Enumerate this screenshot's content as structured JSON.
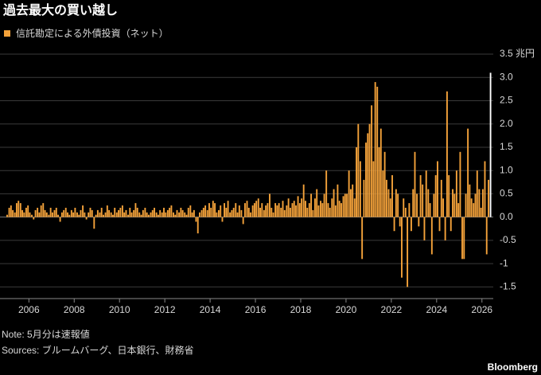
{
  "title": "過去最大の買い越し",
  "note": "Note: 5月分は速報値",
  "sources": "Sources: ブルームバーグ、日本銀行、財務省",
  "brand": "Bloomberg",
  "chart_data": {
    "type": "bar",
    "series": [
      {
        "name": "信託勘定による外債投資（ネット）",
        "color": "#f4a23a",
        "last_color": "#ffffff",
        "x": [
          2005.04,
          2005.13,
          2005.21,
          2005.29,
          2005.38,
          2005.46,
          2005.54,
          2005.63,
          2005.71,
          2005.79,
          2005.88,
          2005.96,
          2006.04,
          2006.13,
          2006.21,
          2006.29,
          2006.38,
          2006.46,
          2006.54,
          2006.63,
          2006.71,
          2006.79,
          2006.88,
          2006.96,
          2007.04,
          2007.13,
          2007.21,
          2007.29,
          2007.38,
          2007.46,
          2007.54,
          2007.63,
          2007.71,
          2007.79,
          2007.88,
          2007.96,
          2008.04,
          2008.13,
          2008.21,
          2008.29,
          2008.38,
          2008.46,
          2008.54,
          2008.63,
          2008.71,
          2008.79,
          2008.88,
          2008.96,
          2009.04,
          2009.13,
          2009.21,
          2009.29,
          2009.38,
          2009.46,
          2009.54,
          2009.63,
          2009.71,
          2009.79,
          2009.88,
          2009.96,
          2010.04,
          2010.13,
          2010.21,
          2010.29,
          2010.38,
          2010.46,
          2010.54,
          2010.63,
          2010.71,
          2010.79,
          2010.88,
          2010.96,
          2011.04,
          2011.13,
          2011.21,
          2011.29,
          2011.38,
          2011.46,
          2011.54,
          2011.63,
          2011.71,
          2011.79,
          2011.88,
          2011.96,
          2012.04,
          2012.13,
          2012.21,
          2012.29,
          2012.38,
          2012.46,
          2012.54,
          2012.63,
          2012.71,
          2012.79,
          2012.88,
          2012.96,
          2013.04,
          2013.13,
          2013.21,
          2013.29,
          2013.38,
          2013.46,
          2013.54,
          2013.63,
          2013.71,
          2013.79,
          2013.88,
          2013.96,
          2014.04,
          2014.13,
          2014.21,
          2014.29,
          2014.38,
          2014.46,
          2014.54,
          2014.63,
          2014.71,
          2014.79,
          2014.88,
          2014.96,
          2015.04,
          2015.13,
          2015.21,
          2015.29,
          2015.38,
          2015.46,
          2015.54,
          2015.63,
          2015.71,
          2015.79,
          2015.88,
          2015.96,
          2016.04,
          2016.13,
          2016.21,
          2016.29,
          2016.38,
          2016.46,
          2016.54,
          2016.63,
          2016.71,
          2016.79,
          2016.88,
          2016.96,
          2017.04,
          2017.13,
          2017.21,
          2017.29,
          2017.38,
          2017.46,
          2017.54,
          2017.63,
          2017.71,
          2017.79,
          2017.88,
          2017.96,
          2018.04,
          2018.13,
          2018.21,
          2018.29,
          2018.38,
          2018.46,
          2018.54,
          2018.63,
          2018.71,
          2018.79,
          2018.88,
          2018.96,
          2019.04,
          2019.13,
          2019.21,
          2019.29,
          2019.38,
          2019.46,
          2019.54,
          2019.63,
          2019.71,
          2019.79,
          2019.88,
          2019.96,
          2020.04,
          2020.13,
          2020.21,
          2020.29,
          2020.38,
          2020.46,
          2020.54,
          2020.63,
          2020.71,
          2020.79,
          2020.88,
          2020.96,
          2021.04,
          2021.13,
          2021.21,
          2021.29,
          2021.38,
          2021.46,
          2021.54,
          2021.63,
          2021.71,
          2021.79,
          2021.88,
          2021.96,
          2022.04,
          2022.13,
          2022.21,
          2022.29,
          2022.38,
          2022.46,
          2022.54,
          2022.63,
          2022.71,
          2022.79,
          2022.88,
          2022.96,
          2023.04,
          2023.13,
          2023.21,
          2023.29,
          2023.38,
          2023.46,
          2023.54,
          2023.63,
          2023.71,
          2023.79,
          2023.88,
          2023.96,
          2024.04,
          2024.13,
          2024.21,
          2024.29,
          2024.38,
          2024.46,
          2024.54,
          2024.63,
          2024.71,
          2024.79,
          2024.88,
          2024.96,
          2025.04,
          2025.13,
          2025.21,
          2025.29,
          2025.38,
          2025.46,
          2025.54,
          2025.63,
          2025.71,
          2025.79,
          2025.88,
          2025.96,
          2026.04,
          2026.13,
          2026.21,
          2026.29,
          2026.38
        ],
        "values": [
          0.05,
          0.2,
          0.25,
          0.15,
          0.1,
          0.3,
          0.35,
          0.3,
          0.15,
          0.1,
          0.2,
          0.25,
          0.1,
          0.05,
          -0.05,
          0.15,
          0.2,
          0.1,
          0.25,
          0.3,
          0.15,
          0.1,
          0.05,
          0.2,
          0.1,
          0.15,
          0.2,
          0.05,
          -0.1,
          0.1,
          0.15,
          0.2,
          0.1,
          0.05,
          0.15,
          0.1,
          0.2,
          0.1,
          0.05,
          0.15,
          0.25,
          0.1,
          -0.05,
          0.1,
          0.2,
          0.15,
          -0.25,
          0.05,
          0.15,
          0.1,
          0.2,
          0.05,
          0.1,
          0.25,
          0.15,
          0.1,
          0.05,
          0.2,
          0.1,
          0.15,
          0.2,
          0.25,
          0.1,
          0.15,
          0.05,
          0.2,
          0.1,
          0.15,
          0.3,
          0.2,
          0.1,
          0.05,
          0.15,
          0.2,
          0.1,
          0.05,
          0.1,
          0.15,
          0.2,
          0.1,
          0.05,
          0.15,
          0.1,
          0.2,
          0.1,
          0.15,
          0.2,
          0.25,
          0.1,
          0.05,
          0.15,
          0.1,
          0.2,
          0.15,
          0.1,
          0.05,
          0.2,
          0.25,
          0.1,
          0.15,
          -0.1,
          -0.35,
          0.1,
          0.15,
          0.2,
          0.25,
          0.15,
          0.3,
          0.2,
          0.35,
          0.3,
          0.1,
          0.15,
          0.25,
          -0.1,
          0.3,
          0.2,
          0.35,
          0.1,
          0.15,
          0.2,
          0.3,
          0.1,
          0.25,
          0.15,
          -0.15,
          0.3,
          0.35,
          0.2,
          0.1,
          0.25,
          0.3,
          0.35,
          0.4,
          0.2,
          0.3,
          0.15,
          0.25,
          0.3,
          0.5,
          0.2,
          0.1,
          0.3,
          0.25,
          0.3,
          0.2,
          0.35,
          0.15,
          0.25,
          0.4,
          0.2,
          0.3,
          0.35,
          0.25,
          0.45,
          0.3,
          0.4,
          0.7,
          0.35,
          0.2,
          0.3,
          0.5,
          0.15,
          0.4,
          0.6,
          0.25,
          0.35,
          0.3,
          0.5,
          1.0,
          0.3,
          0.2,
          0.4,
          0.6,
          0.25,
          0.7,
          0.35,
          0.3,
          0.45,
          0.5,
          0.5,
          1.0,
          0.6,
          0.7,
          0.4,
          1.5,
          2.0,
          1.2,
          -0.9,
          0.8,
          1.6,
          1.8,
          2.0,
          2.4,
          1.2,
          2.9,
          2.8,
          1.5,
          1.9,
          1.0,
          1.4,
          0.8,
          0.6,
          0.4,
          0.9,
          -0.3,
          0.6,
          0.5,
          -0.2,
          -1.3,
          0.4,
          0.2,
          -1.5,
          0.3,
          -0.3,
          0.6,
          1.4,
          0.5,
          -0.2,
          0.9,
          0.7,
          -0.5,
          1.0,
          0.6,
          0.3,
          -0.8,
          0.5,
          0.9,
          1.2,
          -0.3,
          0.8,
          0.4,
          -0.5,
          2.7,
          0.9,
          -0.3,
          0.6,
          0.5,
          1.0,
          0.3,
          1.4,
          -0.9,
          -0.9,
          0.5,
          1.9,
          0.7,
          0.4,
          0.3,
          0.5,
          1.0,
          0.6,
          0.2,
          0.6,
          1.2,
          -0.8,
          0.8,
          3.1
        ]
      }
    ],
    "xlim": [
      2004.9,
      2026.5
    ],
    "xticks": [
      2006,
      2008,
      2010,
      2012,
      2014,
      2016,
      2018,
      2020,
      2022,
      2024,
      2026
    ],
    "ylim": [
      -1.75,
      3.5
    ],
    "yticks": [
      -1.5,
      -1.0,
      -0.5,
      {
        "value": 0,
        "label": "0.0"
      },
      0.5,
      {
        "value": 1,
        "label": "1.0"
      },
      1.5,
      {
        "value": 2,
        "label": "2.0"
      },
      2.5,
      {
        "value": 3,
        "label": "3.0"
      },
      {
        "value": 3.5,
        "label": "3.5 兆円"
      }
    ],
    "grid": true
  }
}
